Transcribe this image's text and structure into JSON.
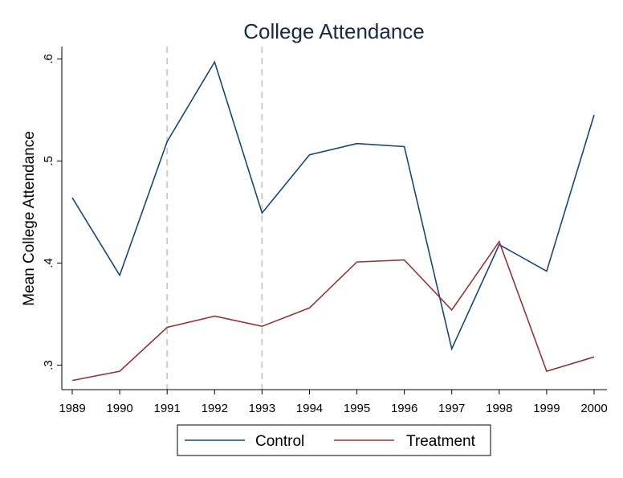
{
  "chart_data": {
    "type": "line",
    "title": "College Attendance",
    "xlabel": "",
    "ylabel": "Mean College Attendance",
    "x": [
      1989,
      1990,
      1991,
      1992,
      1993,
      1994,
      1995,
      1996,
      1997,
      1998,
      1999,
      2000
    ],
    "x_tick_labels": [
      "1989",
      "1990",
      "1991",
      "1992",
      "1993",
      "1994",
      "1995",
      "1996",
      "1997",
      "1998",
      "1999",
      "2000"
    ],
    "y_ticks": [
      0.3,
      0.4,
      0.5,
      0.6
    ],
    "y_tick_labels": [
      ".3",
      ".4",
      ".5",
      ".6"
    ],
    "xlim": [
      1989,
      2000
    ],
    "ylim": [
      0.276,
      0.612
    ],
    "grid": false,
    "reference_lines_x": [
      1991,
      1993
    ],
    "legend_position": "bottom",
    "series": [
      {
        "name": "Control",
        "color": "#1a476f",
        "values": [
          0.464,
          0.388,
          0.519,
          0.597,
          0.449,
          0.506,
          0.517,
          0.514,
          0.316,
          0.418,
          0.392,
          0.545
        ]
      },
      {
        "name": "Treatment",
        "color": "#90353b",
        "values": [
          0.285,
          0.294,
          0.337,
          0.348,
          0.338,
          0.356,
          0.401,
          0.403,
          0.354,
          0.421,
          0.294,
          0.308
        ]
      }
    ]
  }
}
